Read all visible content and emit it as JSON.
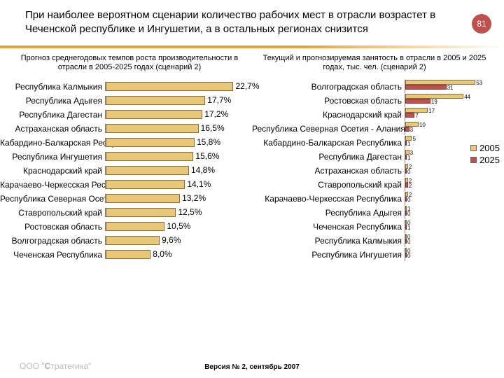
{
  "page_number": "81",
  "title": "При наиболее вероятном сценарии количество рабочих мест в отрасли возрастет в Чеченской республике и Ингушетии, а в остальных регионах снизится",
  "left_chart": {
    "title": "Прогноз среднегодовых темпов роста производительности в отрасли в 2005-2025 годах (сценарий 2)",
    "max": 26,
    "bar_color": "#e6c878",
    "bar_border": "#8a6d3b",
    "rows": [
      {
        "label": "Республика Калмыкия",
        "value": 22.7,
        "text": "22,7%"
      },
      {
        "label": "Республика Адыгея",
        "value": 17.7,
        "text": "17,7%"
      },
      {
        "label": "Республика Дагестан",
        "value": 17.2,
        "text": "17,2%"
      },
      {
        "label": "Астраханская область",
        "value": 16.5,
        "text": "16,5%"
      },
      {
        "label": "Кабардино-Балкарская Республика",
        "value": 15.8,
        "text": "15,8%"
      },
      {
        "label": "Республика Ингушетия",
        "value": 15.6,
        "text": "15,6%"
      },
      {
        "label": "Краснодарский край",
        "value": 14.8,
        "text": "14,8%"
      },
      {
        "label": "Карачаево-Черкесская Республика",
        "value": 14.1,
        "text": "14,1%"
      },
      {
        "label": "Республика Северная Осетия - Алания",
        "value": 13.2,
        "text": "13,2%"
      },
      {
        "label": "Ставропольский край",
        "value": 12.5,
        "text": "12,5%"
      },
      {
        "label": "Ростовская область",
        "value": 10.5,
        "text": "10,5%"
      },
      {
        "label": "Волгоградская область",
        "value": 9.6,
        "text": "9,6%"
      },
      {
        "label": "Чеченская Республика",
        "value": 8.0,
        "text": "8,0%"
      }
    ]
  },
  "right_chart": {
    "title": "Текущий и прогнозируемая занятость в отрасли в 2005 и 2025 годах, тыс. чел. (сценарий 2)",
    "max": 55,
    "series_a_color": "#e6c878",
    "series_b_color": "#c0504d",
    "legend": {
      "a": "2005",
      "b": "2025"
    },
    "rows": [
      {
        "label": "Волгоградская область",
        "a": 53,
        "b": 31,
        "at": "53",
        "bt": "31"
      },
      {
        "label": "Ростовская область",
        "a": 44,
        "b": 19,
        "at": "44",
        "bt": "19"
      },
      {
        "label": "Краснодарский край",
        "a": 17,
        "b": 7,
        "at": "17",
        "bt": "7"
      },
      {
        "label": "Республика Северная Осетия - Алания",
        "a": 10,
        "b": 3,
        "at": "10",
        "bt": "3"
      },
      {
        "label": "Кабардино-Балкарская Республика",
        "a": 5,
        "b": 1,
        "at": "5",
        "bt": "1"
      },
      {
        "label": "Республика Дагестан",
        "a": 3,
        "b": 1,
        "at": "3",
        "bt": "1"
      },
      {
        "label": "Астраханская область",
        "a": 2,
        "b": 0,
        "at": "2",
        "bt": "0"
      },
      {
        "label": "Ставропольский край",
        "a": 2,
        "b": 2,
        "at": "2",
        "bt": "2"
      },
      {
        "label": "Карачаево-Черкесская Республика",
        "a": 2,
        "b": 0,
        "at": "2",
        "bt": "0"
      },
      {
        "label": "Республика Адыгея",
        "a": 1,
        "b": 0,
        "at": "1",
        "bt": "0"
      },
      {
        "label": "Чеченская Республика",
        "a": 0,
        "b": 1,
        "at": "0",
        "bt": "1"
      },
      {
        "label": "Республика Калмыкия",
        "a": 0,
        "b": 0,
        "at": "0",
        "bt": "0"
      },
      {
        "label": "Республика Ингушетия",
        "a": 0,
        "b": 0,
        "at": "0",
        "bt": "0"
      }
    ]
  },
  "footer": "Версия № 2, сентябрь 2007",
  "logo_text": "тратегика",
  "logo_prefix": "ООО \""
}
